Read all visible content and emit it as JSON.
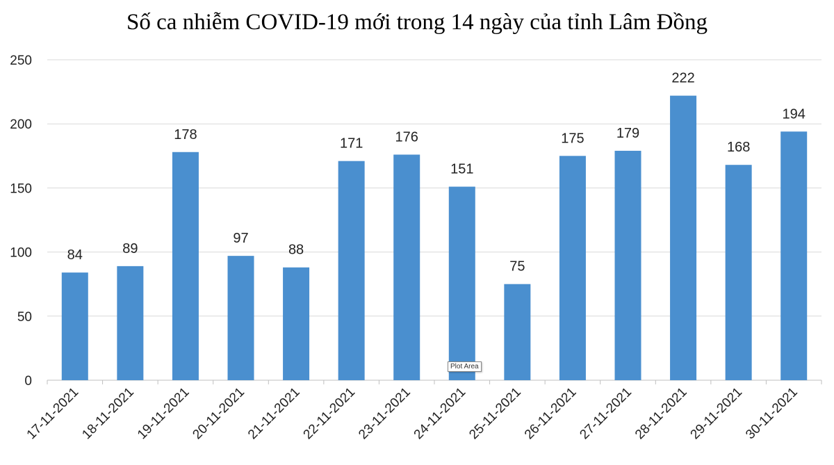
{
  "chart_data": {
    "type": "bar",
    "title": "Số ca nhiễm COVID-19 mới trong 14 ngày của tỉnh Lâm Đồng",
    "categories": [
      "17-11-2021",
      "18-11-2021",
      "19-11-2021",
      "20-11-2021",
      "21-11-2021",
      "22-11-2021",
      "23-11-2021",
      "24-11-2021",
      "25-11-2021",
      "26-11-2021",
      "27-11-2021",
      "28-11-2021",
      "29-11-2021",
      "30-11-2021"
    ],
    "values": [
      84,
      89,
      178,
      97,
      88,
      171,
      176,
      151,
      75,
      175,
      179,
      222,
      168,
      194
    ],
    "ylim": [
      0,
      250
    ],
    "yticks": [
      0,
      50,
      100,
      150,
      200,
      250
    ],
    "grid": true,
    "bar_color": "#4A8FCF",
    "data_labels": true
  },
  "tooltip": {
    "text": "Plot Area"
  }
}
